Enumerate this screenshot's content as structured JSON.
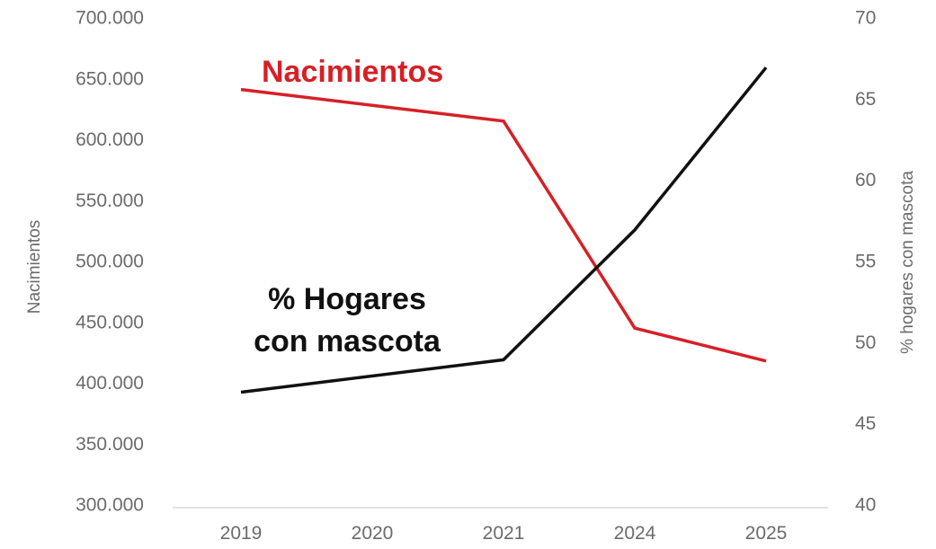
{
  "chart_data": {
    "type": "line",
    "categories": [
      "2019",
      "2020",
      "2021",
      "2024",
      "2025"
    ],
    "y_left": {
      "label": "Nacimientos",
      "range": [
        300000,
        700000
      ],
      "ticks": [
        "700.000",
        "650.000",
        "600.000",
        "550.000",
        "500.000",
        "450.000",
        "400.000",
        "350.000",
        "300.000"
      ]
    },
    "y_right": {
      "label": "% hogares con mascota",
      "range": [
        40,
        70
      ],
      "ticks": [
        "70",
        "65",
        "60",
        "55",
        "50",
        "45",
        "40"
      ]
    },
    "series": [
      {
        "key": "births",
        "name": "Nacimientos",
        "axis": "left",
        "color": "#d62027",
        "x": [
          "2019",
          "2021",
          "2024",
          "2025"
        ],
        "values": [
          642000,
          616000,
          446000,
          419000
        ],
        "label_lines": [
          "Nacimientos"
        ]
      },
      {
        "key": "pets",
        "name": "% Hogares con mascota",
        "axis": "right",
        "color": "#111111",
        "x": [
          "2019",
          "2021",
          "2024",
          "2025"
        ],
        "values": [
          47,
          49,
          57,
          67
        ],
        "label_lines": [
          "% Hogares",
          "con mascota"
        ]
      }
    ],
    "grid": false,
    "legend": "inline"
  }
}
